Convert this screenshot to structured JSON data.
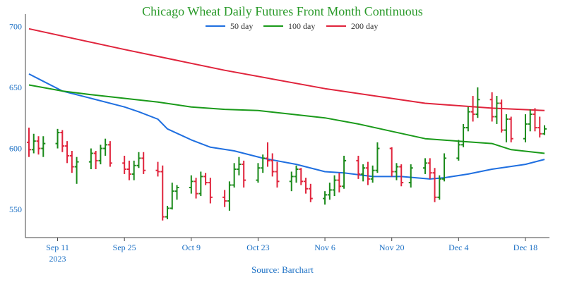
{
  "chart_data": {
    "type": "line",
    "title": "Chicago Wheat Daily Futures Front Month Continuous",
    "source": "Source: Barchart",
    "x_dates": [
      "2023-09-05",
      "2023-12-22"
    ],
    "x_tick_labels": [
      {
        "date": "2023-09-11",
        "label": "Sep 11",
        "sub": "2023"
      },
      {
        "date": "2023-09-25",
        "label": "Sep 25",
        "sub": ""
      },
      {
        "date": "2023-10-09",
        "label": "Oct 9",
        "sub": ""
      },
      {
        "date": "2023-10-23",
        "label": "Oct 23",
        "sub": ""
      },
      {
        "date": "2023-11-06",
        "label": "Nov 6",
        "sub": ""
      },
      {
        "date": "2023-11-20",
        "label": "Nov 20",
        "sub": ""
      },
      {
        "date": "2023-12-04",
        "label": "Dec 4",
        "sub": ""
      },
      {
        "date": "2023-12-18",
        "label": "Dec 18",
        "sub": ""
      }
    ],
    "y_ticks": [
      550,
      600,
      650,
      700
    ],
    "ylim": [
      527,
      710
    ],
    "grid": false,
    "legend_position": "top-center",
    "colors": {
      "up": "#1a8a1a",
      "down": "#e0243c",
      "title": "#2a9a2a",
      "tick": "#1a6fc4"
    },
    "series": [
      {
        "name": "50 day",
        "color": "#1f6fe0",
        "points": [
          [
            "2023-09-05",
            661
          ],
          [
            "2023-09-08",
            655
          ],
          [
            "2023-09-12",
            647
          ],
          [
            "2023-09-18",
            641
          ],
          [
            "2023-09-25",
            634
          ],
          [
            "2023-09-28",
            630
          ],
          [
            "2023-10-02",
            624
          ],
          [
            "2023-10-04",
            616
          ],
          [
            "2023-10-09",
            607
          ],
          [
            "2023-10-13",
            601
          ],
          [
            "2023-10-18",
            598
          ],
          [
            "2023-10-24",
            592
          ],
          [
            "2023-10-31",
            587
          ],
          [
            "2023-11-06",
            581
          ],
          [
            "2023-11-10",
            580
          ],
          [
            "2023-11-16",
            577
          ],
          [
            "2023-11-22",
            577
          ],
          [
            "2023-11-28",
            575
          ],
          [
            "2023-12-01",
            576
          ],
          [
            "2023-12-06",
            579
          ],
          [
            "2023-12-11",
            583
          ],
          [
            "2023-12-18",
            587
          ],
          [
            "2023-12-22",
            591
          ]
        ]
      },
      {
        "name": "100 day",
        "color": "#1a9a1a",
        "points": [
          [
            "2023-09-05",
            652
          ],
          [
            "2023-09-12",
            647
          ],
          [
            "2023-09-18",
            644
          ],
          [
            "2023-09-25",
            641
          ],
          [
            "2023-10-02",
            638
          ],
          [
            "2023-10-09",
            634
          ],
          [
            "2023-10-16",
            632
          ],
          [
            "2023-10-23",
            631
          ],
          [
            "2023-10-30",
            628
          ],
          [
            "2023-11-06",
            625
          ],
          [
            "2023-11-13",
            620
          ],
          [
            "2023-11-20",
            614
          ],
          [
            "2023-11-27",
            608
          ],
          [
            "2023-12-04",
            606
          ],
          [
            "2023-12-11",
            604
          ],
          [
            "2023-12-15",
            599
          ],
          [
            "2023-12-22",
            596
          ]
        ]
      },
      {
        "name": "200 day",
        "color": "#e0243c",
        "points": [
          [
            "2023-09-05",
            698
          ],
          [
            "2023-09-25",
            681
          ],
          [
            "2023-10-16",
            664
          ],
          [
            "2023-11-06",
            649
          ],
          [
            "2023-11-27",
            637
          ],
          [
            "2023-12-11",
            633
          ],
          [
            "2023-12-22",
            631
          ]
        ]
      }
    ],
    "ohlc": [
      [
        "2023-09-05",
        605,
        617,
        593,
        599
      ],
      [
        "2023-09-06",
        599,
        612,
        596,
        606
      ],
      [
        "2023-09-07",
        606,
        610,
        595,
        600
      ],
      [
        "2023-09-08",
        600,
        610,
        593,
        604
      ],
      [
        "2023-09-11",
        604,
        616,
        600,
        613
      ],
      [
        "2023-09-12",
        613,
        615,
        597,
        602
      ],
      [
        "2023-09-13",
        602,
        606,
        588,
        594
      ],
      [
        "2023-09-14",
        594,
        598,
        580,
        585
      ],
      [
        "2023-09-15",
        585,
        593,
        571,
        589
      ],
      [
        "2023-09-18",
        589,
        600,
        583,
        596
      ],
      [
        "2023-09-19",
        596,
        598,
        583,
        590
      ],
      [
        "2023-09-20",
        590,
        603,
        587,
        600
      ],
      [
        "2023-09-21",
        600,
        608,
        594,
        603
      ],
      [
        "2023-09-22",
        603,
        606,
        585,
        588
      ],
      [
        "2023-09-25",
        588,
        594,
        579,
        583
      ],
      [
        "2023-09-26",
        583,
        590,
        574,
        579
      ],
      [
        "2023-09-27",
        579,
        590,
        574,
        586
      ],
      [
        "2023-09-28",
        586,
        597,
        584,
        592
      ],
      [
        "2023-09-29",
        592,
        597,
        579,
        582
      ],
      [
        "2023-10-02",
        582,
        589,
        577,
        581
      ],
      [
        "2023-10-03",
        581,
        586,
        541,
        544
      ],
      [
        "2023-10-04",
        544,
        553,
        542,
        551
      ],
      [
        "2023-10-05",
        551,
        572,
        550,
        565
      ],
      [
        "2023-10-06",
        565,
        570,
        558,
        568
      ],
      [
        "2023-10-09",
        568,
        578,
        563,
        573
      ],
      [
        "2023-10-10",
        573,
        576,
        559,
        563
      ],
      [
        "2023-10-11",
        563,
        581,
        561,
        577
      ],
      [
        "2023-10-12",
        577,
        580,
        570,
        572
      ],
      [
        "2023-10-13",
        572,
        576,
        555,
        560
      ],
      [
        "2023-10-16",
        560,
        566,
        552,
        557
      ],
      [
        "2023-10-17",
        557,
        573,
        549,
        570
      ],
      [
        "2023-10-18",
        570,
        588,
        568,
        583
      ],
      [
        "2023-10-19",
        583,
        593,
        578,
        587
      ],
      [
        "2023-10-20",
        587,
        590,
        568,
        574
      ],
      [
        "2023-10-23",
        574,
        588,
        572,
        584
      ],
      [
        "2023-10-24",
        584,
        595,
        580,
        592
      ],
      [
        "2023-10-25",
        592,
        605,
        585,
        590
      ],
      [
        "2023-10-26",
        590,
        596,
        577,
        581
      ],
      [
        "2023-10-27",
        581,
        589,
        568,
        573
      ],
      [
        "2023-10-30",
        573,
        581,
        565,
        577
      ],
      [
        "2023-10-31",
        577,
        586,
        572,
        583
      ],
      [
        "2023-11-01",
        583,
        584,
        570,
        573
      ],
      [
        "2023-11-02",
        573,
        576,
        563,
        567
      ],
      [
        "2023-11-03",
        567,
        571,
        556,
        559
      ],
      [
        "2023-11-06",
        559,
        565,
        554,
        562
      ],
      [
        "2023-11-07",
        562,
        572,
        558,
        566
      ],
      [
        "2023-11-08",
        566,
        578,
        561,
        574
      ],
      [
        "2023-11-09",
        574,
        580,
        564,
        569
      ],
      [
        "2023-11-10",
        569,
        594,
        567,
        590
      ],
      [
        "2023-11-13",
        590,
        594,
        575,
        579
      ],
      [
        "2023-11-14",
        579,
        587,
        573,
        584
      ],
      [
        "2023-11-15",
        584,
        589,
        570,
        575
      ],
      [
        "2023-11-16",
        575,
        586,
        572,
        582
      ],
      [
        "2023-11-17",
        582,
        605,
        580,
        600
      ],
      [
        "2023-11-20",
        600,
        601,
        577,
        581
      ],
      [
        "2023-11-21",
        581,
        588,
        574,
        585
      ],
      [
        "2023-11-22",
        585,
        587,
        569,
        572
      ],
      [
        "2023-11-24",
        572,
        587,
        568,
        584
      ],
      [
        "2023-11-27",
        584,
        592,
        579,
        588
      ],
      [
        "2023-11-28",
        588,
        592,
        575,
        580
      ],
      [
        "2023-11-29",
        580,
        584,
        556,
        560
      ],
      [
        "2023-11-30",
        560,
        578,
        558,
        575
      ],
      [
        "2023-12-01",
        575,
        596,
        573,
        592
      ],
      [
        "2023-12-04",
        592,
        607,
        590,
        603
      ],
      [
        "2023-12-05",
        603,
        620,
        601,
        617
      ],
      [
        "2023-12-06",
        617,
        634,
        614,
        630
      ],
      [
        "2023-12-07",
        630,
        643,
        622,
        628
      ],
      [
        "2023-12-08",
        628,
        650,
        625,
        640
      ],
      [
        "2023-12-11",
        640,
        646,
        622,
        626
      ],
      [
        "2023-12-12",
        626,
        643,
        620,
        637
      ],
      [
        "2023-12-13",
        637,
        640,
        613,
        615
      ],
      [
        "2023-12-14",
        615,
        628,
        605,
        624
      ],
      [
        "2023-12-15",
        624,
        626,
        605,
        608
      ],
      [
        "2023-12-18",
        608,
        628,
        605,
        620
      ],
      [
        "2023-12-19",
        620,
        632,
        614,
        628
      ],
      [
        "2023-12-20",
        628,
        633,
        614,
        617
      ],
      [
        "2023-12-21",
        617,
        626,
        609,
        612
      ],
      [
        "2023-12-22",
        612,
        619,
        611,
        616
      ]
    ]
  }
}
